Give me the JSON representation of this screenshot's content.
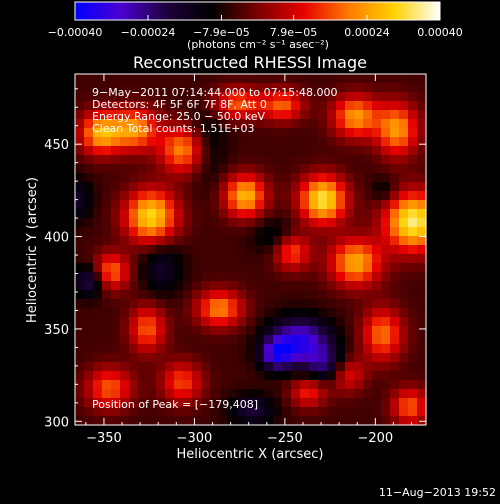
{
  "chart_data": {
    "type": "heatmap",
    "title": "Reconstructed RHESSI Image",
    "xlabel": "Heliocentric X (arcsec)",
    "ylabel": "Heliocentric Y (arcsec)",
    "xlim": [
      -366,
      -172
    ],
    "ylim": [
      298,
      488
    ],
    "x_ticks": [
      -350,
      -300,
      -250,
      -200
    ],
    "y_ticks": [
      300,
      350,
      400,
      450
    ],
    "x_tick_labels": [
      "−350",
      "−300",
      "−250",
      "−200"
    ],
    "y_tick_labels": [
      "300",
      "350",
      "400",
      "450"
    ],
    "colorbar": {
      "min": -0.0004,
      "max": 0.0004,
      "tick_values": [
        -0.0004,
        -0.00024,
        -7.9e-05,
        7.9e-05,
        0.00024,
        0.0004
      ],
      "tick_labels": [
        "−0.00040",
        "−0.00024",
        "−7.9e−05",
        "7.9e−05",
        "0.00024",
        "0.00040"
      ],
      "unit_label": "(photons cm⁻² s⁻¹ asec⁻²)",
      "colormap": [
        "#0000ff",
        "#4b00d2",
        "#1e003c",
        "#000000",
        "#7a0000",
        "#e60000",
        "#ff7a00",
        "#ffd200",
        "#ffffff"
      ]
    },
    "annotations": [
      "9−May−2011 07:14:44.000 to 07:15:48.000",
      "Detectors: 4F 5F 6F 7F 8F, Att 0",
      "Energy Range: 25.0 − 50.0 keV",
      "Clean    Total counts: 1.51E+03"
    ],
    "peak_label": "Position of Peak = [−179,408]",
    "peak_position": [
      -179,
      408
    ],
    "sources": [
      {
        "x": -179,
        "y": 408,
        "sx": 11,
        "sy": 11,
        "a": 1.0
      },
      {
        "x": -229,
        "y": 420,
        "sx": 9,
        "sy": 9,
        "a": 0.95
      },
      {
        "x": -272,
        "y": 422,
        "sx": 8,
        "sy": 8,
        "a": 0.8
      },
      {
        "x": -324,
        "y": 411,
        "sx": 10,
        "sy": 10,
        "a": 0.9
      },
      {
        "x": -352,
        "y": 456,
        "sx": 8,
        "sy": 8,
        "a": 0.75
      },
      {
        "x": -333,
        "y": 458,
        "sx": 9,
        "sy": 8,
        "a": 0.7
      },
      {
        "x": -306,
        "y": 447,
        "sx": 9,
        "sy": 9,
        "a": 0.7
      },
      {
        "x": -276,
        "y": 472,
        "sx": 10,
        "sy": 6,
        "a": 0.55
      },
      {
        "x": -251,
        "y": 471,
        "sx": 8,
        "sy": 6,
        "a": 0.55
      },
      {
        "x": -211,
        "y": 465,
        "sx": 9,
        "sy": 8,
        "a": 0.7
      },
      {
        "x": -188,
        "y": 458,
        "sx": 8,
        "sy": 10,
        "a": 0.7
      },
      {
        "x": -211,
        "y": 386,
        "sx": 10,
        "sy": 9,
        "a": 0.75
      },
      {
        "x": -246,
        "y": 392,
        "sx": 7,
        "sy": 7,
        "a": 0.55
      },
      {
        "x": -286,
        "y": 361,
        "sx": 9,
        "sy": 7,
        "a": 0.65
      },
      {
        "x": -326,
        "y": 350,
        "sx": 7,
        "sy": 9,
        "a": 0.55
      },
      {
        "x": -346,
        "y": 381,
        "sx": 7,
        "sy": 7,
        "a": 0.6
      },
      {
        "x": -347,
        "y": 318,
        "sx": 9,
        "sy": 8,
        "a": 0.55
      },
      {
        "x": -307,
        "y": 321,
        "sx": 8,
        "sy": 8,
        "a": 0.5
      },
      {
        "x": -196,
        "y": 347,
        "sx": 8,
        "sy": 10,
        "a": 0.6
      },
      {
        "x": -216,
        "y": 326,
        "sx": 7,
        "sy": 7,
        "a": 0.5
      },
      {
        "x": -181,
        "y": 308,
        "sx": 7,
        "sy": 7,
        "a": 0.55
      },
      {
        "x": -237,
        "y": 316,
        "sx": 7,
        "sy": 6,
        "a": 0.45
      },
      {
        "x": -294,
        "y": 450,
        "sx": 8,
        "sy": 14,
        "a": -0.25
      },
      {
        "x": -255,
        "y": 400,
        "sx": 9,
        "sy": 7,
        "a": -0.22
      },
      {
        "x": -242,
        "y": 343,
        "sx": 12,
        "sy": 9,
        "a": -0.75
      },
      {
        "x": -255,
        "y": 336,
        "sx": 6,
        "sy": 6,
        "a": -0.55
      },
      {
        "x": -226,
        "y": 330,
        "sx": 9,
        "sy": 7,
        "a": -0.45
      },
      {
        "x": -318,
        "y": 383,
        "sx": 8,
        "sy": 10,
        "a": -0.3
      },
      {
        "x": -358,
        "y": 376,
        "sx": 6,
        "sy": 6,
        "a": -0.45
      },
      {
        "x": -268,
        "y": 306,
        "sx": 9,
        "sy": 6,
        "a": -0.35
      },
      {
        "x": -195,
        "y": 425,
        "sx": 5,
        "sy": 5,
        "a": -0.2
      },
      {
        "x": -365,
        "y": 420,
        "sx": 6,
        "sy": 8,
        "a": -0.3
      }
    ]
  },
  "footer": {
    "date": "11−Aug−2013 19:52"
  }
}
